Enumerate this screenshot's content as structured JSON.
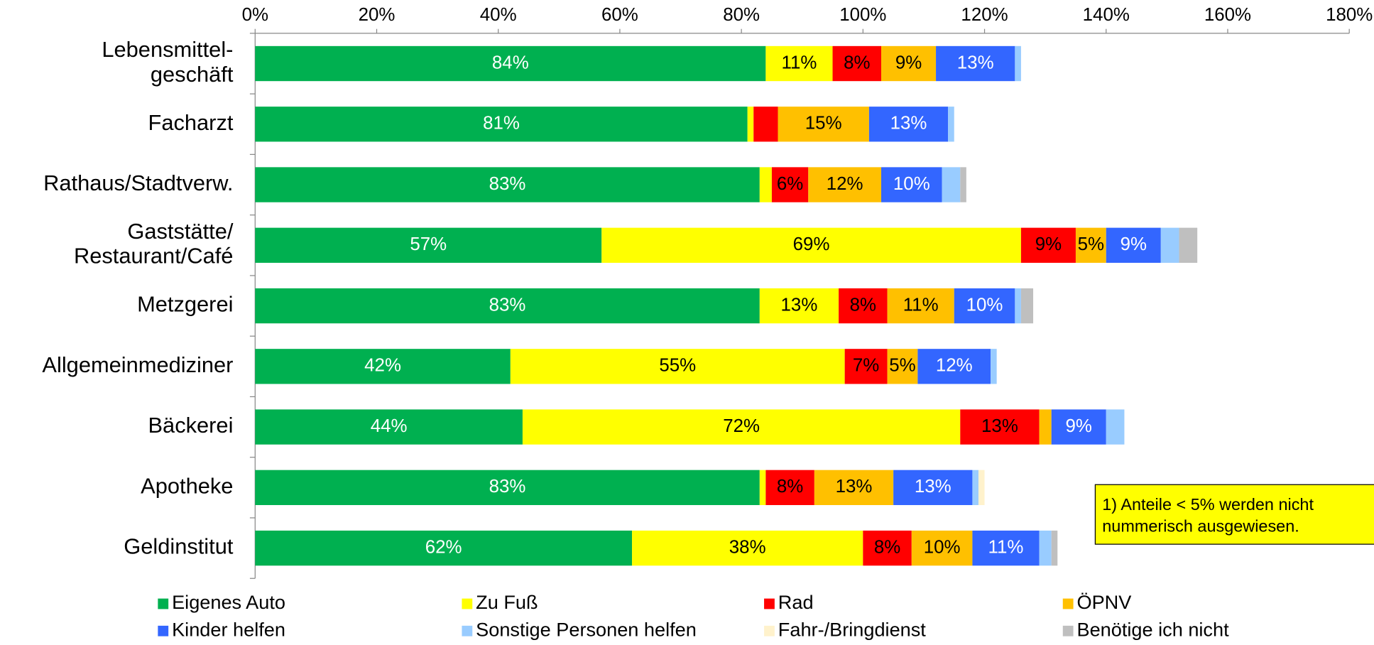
{
  "chart_data": {
    "type": "stacked_barh",
    "categories": [
      "Lebensmittel-\ngeschäft",
      "Facharzt",
      "Rathaus/Stadtverw.",
      "Gaststätte/\nRestaurant/Café",
      "Metzgerei",
      "Allgemeinmediziner",
      "Bäckerei",
      "Apotheke",
      "Geldinstitut"
    ],
    "xlim": [
      0,
      180
    ],
    "xticks": [
      {
        "value": 0,
        "label": "0%"
      },
      {
        "value": 20,
        "label": "20%"
      },
      {
        "value": 40,
        "label": "40%"
      },
      {
        "value": 60,
        "label": "60%"
      },
      {
        "value": 80,
        "label": "80%"
      },
      {
        "value": 100,
        "label": "100%"
      },
      {
        "value": 120,
        "label": "120%"
      },
      {
        "value": 140,
        "label": "140%"
      },
      {
        "value": 160,
        "label": "160%"
      },
      {
        "value": 180,
        "label": "180%"
      }
    ],
    "series": [
      {
        "name": "Eigenes Auto",
        "color": "#00b050",
        "label_color": "#ffffff",
        "values": [
          84,
          81,
          83,
          57,
          83,
          42,
          44,
          83,
          62
        ],
        "value_labels": [
          "84%",
          "81%",
          "83%",
          "57%",
          "83%",
          "42%",
          "44%",
          "83%",
          "62%"
        ]
      },
      {
        "name": "Zu Fuß",
        "color": "#ffff00",
        "label_color": "#000000",
        "values": [
          11,
          1,
          2,
          69,
          13,
          55,
          72,
          1,
          38
        ],
        "value_labels": [
          "11%",
          null,
          null,
          "69%",
          "13%",
          "55%",
          "72%",
          null,
          "38%"
        ]
      },
      {
        "name": "Rad",
        "color": "#ff0000",
        "label_color": "#000000",
        "values": [
          8,
          4,
          6,
          9,
          8,
          7,
          13,
          8,
          8
        ],
        "value_labels": [
          "8%",
          null,
          "6%",
          "9%",
          "8%",
          "7%",
          "13%",
          "8%",
          "8%"
        ]
      },
      {
        "name": "ÖPNV",
        "color": "#ffc000",
        "label_color": "#000000",
        "values": [
          9,
          15,
          12,
          5,
          11,
          5,
          2,
          13,
          10
        ],
        "value_labels": [
          "9%",
          "15%",
          "12%",
          "5%",
          "11%",
          "5%",
          null,
          "13%",
          "10%"
        ]
      },
      {
        "name": "Kinder helfen",
        "color": "#3366ff",
        "label_color": "#ffffff",
        "values": [
          13,
          13,
          10,
          9,
          10,
          12,
          9,
          13,
          11
        ],
        "value_labels": [
          "13%",
          "13%",
          "10%",
          "9%",
          "10%",
          "12%",
          "9%",
          "13%",
          "11%"
        ]
      },
      {
        "name": "Sonstige Personen helfen",
        "color": "#99ccff",
        "label_color": "#000000",
        "values": [
          1,
          1,
          3,
          3,
          1,
          1,
          3,
          1,
          2
        ],
        "value_labels": [
          null,
          null,
          null,
          null,
          null,
          null,
          null,
          null,
          null
        ]
      },
      {
        "name": "Fahr-/Bringdienst",
        "color": "#fff2cc",
        "label_color": "#000000",
        "values": [
          0,
          0,
          0,
          0,
          0,
          0,
          0,
          1,
          0
        ],
        "value_labels": [
          null,
          null,
          null,
          null,
          null,
          null,
          null,
          null,
          null
        ]
      },
      {
        "name": "Benötige ich nicht",
        "color": "#bfbfbf",
        "label_color": "#000000",
        "values": [
          0,
          0,
          1,
          3,
          2,
          0,
          0,
          0,
          1
        ],
        "value_labels": [
          null,
          null,
          null,
          null,
          null,
          null,
          null,
          null,
          null
        ]
      }
    ],
    "annotation": "1) Anteile < 5% werden nicht\nnummerisch ausgewiesen."
  }
}
